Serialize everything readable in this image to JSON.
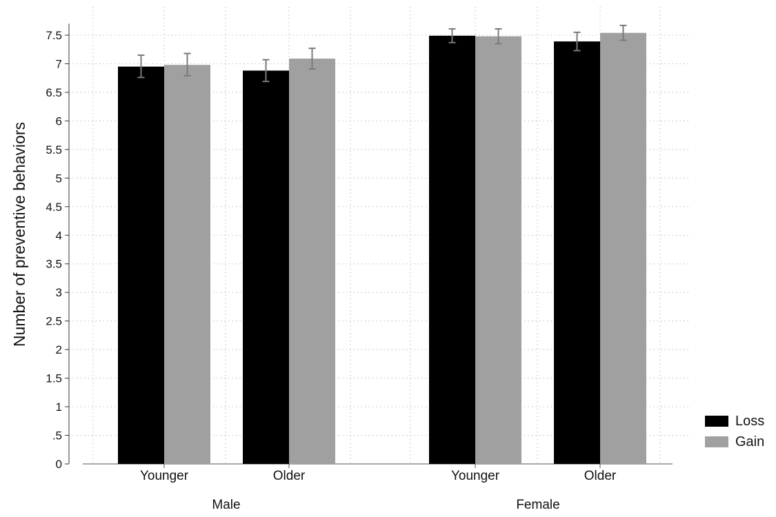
{
  "chart_data": {
    "type": "bar",
    "ylabel": "Number of preventive behaviors",
    "ylim": [
      0,
      7.7
    ],
    "yticks": [
      {
        "value": 0,
        "label": "0"
      },
      {
        "value": 0.5,
        "label": ".5"
      },
      {
        "value": 1,
        "label": "1"
      },
      {
        "value": 1.5,
        "label": "1.5"
      },
      {
        "value": 2,
        "label": "2"
      },
      {
        "value": 2.5,
        "label": "2.5"
      },
      {
        "value": 3,
        "label": "3"
      },
      {
        "value": 3.5,
        "label": "3.5"
      },
      {
        "value": 4,
        "label": "4"
      },
      {
        "value": 4.5,
        "label": "4.5"
      },
      {
        "value": 5,
        "label": "5"
      },
      {
        "value": 5.5,
        "label": "5.5"
      },
      {
        "value": 6,
        "label": "6"
      },
      {
        "value": 6.5,
        "label": "6.5"
      },
      {
        "value": 7,
        "label": "7"
      },
      {
        "value": 7.5,
        "label": "7.5"
      }
    ],
    "groups": [
      "Male",
      "Female"
    ],
    "categories": [
      "Younger",
      "Older",
      "Younger",
      "Older"
    ],
    "category_group": [
      0,
      0,
      1,
      1
    ],
    "grid": true,
    "legend_position": "bottom-right",
    "series": [
      {
        "name": "Loss",
        "color": "#000000",
        "values": [
          6.95,
          6.88,
          7.49,
          7.39
        ],
        "err_low": [
          6.76,
          6.69,
          7.37,
          7.23
        ],
        "err_high": [
          7.15,
          7.07,
          7.61,
          7.55
        ]
      },
      {
        "name": "Gain",
        "color": "#a0a0a0",
        "values": [
          6.98,
          7.09,
          7.48,
          7.54
        ],
        "err_low": [
          6.79,
          6.91,
          7.35,
          7.41
        ],
        "err_high": [
          7.18,
          7.27,
          7.61,
          7.67
        ]
      }
    ],
    "errorbar_color": "#7a7a7a"
  }
}
